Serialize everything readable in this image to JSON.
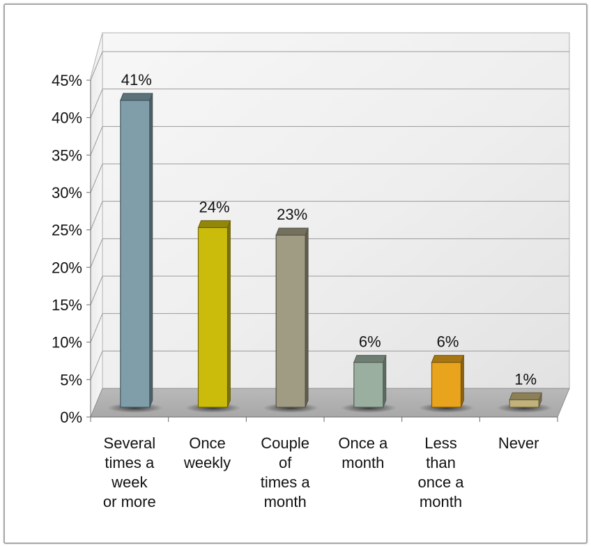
{
  "chart_data": {
    "type": "bar",
    "title": "",
    "xlabel": "",
    "ylabel": "",
    "categories": [
      [
        "Several",
        "times a",
        "week",
        "or more"
      ],
      [
        "Once",
        "weekly"
      ],
      [
        "Couple",
        "of",
        "times a",
        "month"
      ],
      [
        "Once a",
        "month"
      ],
      [
        "Less",
        "than",
        "once a",
        "month"
      ],
      [
        "Never"
      ]
    ],
    "values": [
      41,
      24,
      23,
      6,
      6,
      1
    ],
    "value_labels": [
      "41%",
      "24%",
      "23%",
      "6%",
      "6%",
      "1%"
    ],
    "ylim": [
      0,
      45
    ],
    "ytick_labels": [
      "0%",
      "5%",
      "10%",
      "15%",
      "20%",
      "25%",
      "30%",
      "35%",
      "40%",
      "45%"
    ],
    "bar_colors": [
      "#7f9eaa",
      "#cbbc0c",
      "#a09b83",
      "#9aaf9f",
      "#e8a41c",
      "#c2b27a"
    ],
    "grid": true,
    "style": "3d-column"
  }
}
